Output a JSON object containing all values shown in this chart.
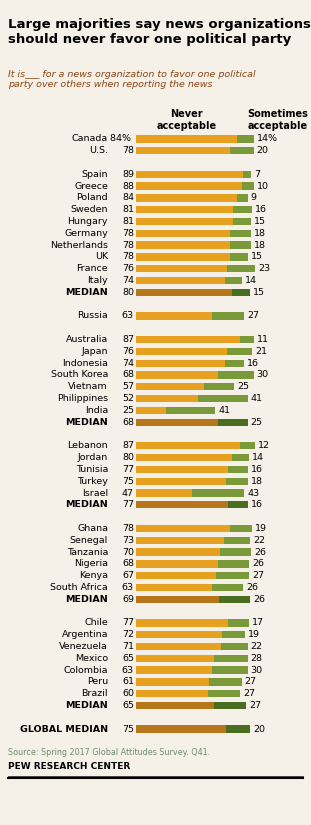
{
  "title": "Large majorities say news organizations\nshould never favor one political party",
  "subtitle": "It is___ for a news organization to favor one political\nparty over others when reporting the news",
  "legend_never": "Never\nacceptable",
  "legend_sometimes": "Sometimes\nacceptable",
  "source": "Source: Spring 2017 Global Attitudes Survey. Q41.",
  "credit": "PEW RESEARCH CENTER",
  "color_never": "#E8A020",
  "color_never_median": "#B8761A",
  "color_sometimes": "#7A9A3A",
  "color_sometimes_median": "#4A6E20",
  "bg_color": "#F5F0E8",
  "categories": [
    {
      "label": "Canada",
      "never": 84,
      "sometimes": 14,
      "never_pct": true,
      "sometimes_pct": true,
      "is_median": false,
      "group": 0
    },
    {
      "label": "U.S.",
      "never": 78,
      "sometimes": 20,
      "never_pct": false,
      "sometimes_pct": false,
      "is_median": false,
      "group": 0
    },
    {
      "label": "",
      "never": 0,
      "sometimes": 0,
      "never_pct": false,
      "sometimes_pct": false,
      "is_median": false,
      "group": -1
    },
    {
      "label": "Spain",
      "never": 89,
      "sometimes": 7,
      "never_pct": false,
      "sometimes_pct": false,
      "is_median": false,
      "group": 1
    },
    {
      "label": "Greece",
      "never": 88,
      "sometimes": 10,
      "never_pct": false,
      "sometimes_pct": false,
      "is_median": false,
      "group": 1
    },
    {
      "label": "Poland",
      "never": 84,
      "sometimes": 9,
      "never_pct": false,
      "sometimes_pct": false,
      "is_median": false,
      "group": 1
    },
    {
      "label": "Sweden",
      "never": 81,
      "sometimes": 16,
      "never_pct": false,
      "sometimes_pct": false,
      "is_median": false,
      "group": 1
    },
    {
      "label": "Hungary",
      "never": 81,
      "sometimes": 15,
      "never_pct": false,
      "sometimes_pct": false,
      "is_median": false,
      "group": 1
    },
    {
      "label": "Germany",
      "never": 78,
      "sometimes": 18,
      "never_pct": false,
      "sometimes_pct": false,
      "is_median": false,
      "group": 1
    },
    {
      "label": "Netherlands",
      "never": 78,
      "sometimes": 18,
      "never_pct": false,
      "sometimes_pct": false,
      "is_median": false,
      "group": 1
    },
    {
      "label": "UK",
      "never": 78,
      "sometimes": 15,
      "never_pct": false,
      "sometimes_pct": false,
      "is_median": false,
      "group": 1
    },
    {
      "label": "France",
      "never": 76,
      "sometimes": 23,
      "never_pct": false,
      "sometimes_pct": false,
      "is_median": false,
      "group": 1
    },
    {
      "label": "Italy",
      "never": 74,
      "sometimes": 14,
      "never_pct": false,
      "sometimes_pct": false,
      "is_median": false,
      "group": 1
    },
    {
      "label": "MEDIAN",
      "never": 80,
      "sometimes": 15,
      "never_pct": false,
      "sometimes_pct": false,
      "is_median": true,
      "group": 1
    },
    {
      "label": "",
      "never": 0,
      "sometimes": 0,
      "never_pct": false,
      "sometimes_pct": false,
      "is_median": false,
      "group": -1
    },
    {
      "label": "Russia",
      "never": 63,
      "sometimes": 27,
      "never_pct": false,
      "sometimes_pct": false,
      "is_median": false,
      "group": 2
    },
    {
      "label": "",
      "never": 0,
      "sometimes": 0,
      "never_pct": false,
      "sometimes_pct": false,
      "is_median": false,
      "group": -1
    },
    {
      "label": "Australia",
      "never": 87,
      "sometimes": 11,
      "never_pct": false,
      "sometimes_pct": false,
      "is_median": false,
      "group": 3
    },
    {
      "label": "Japan",
      "never": 76,
      "sometimes": 21,
      "never_pct": false,
      "sometimes_pct": false,
      "is_median": false,
      "group": 3
    },
    {
      "label": "Indonesia",
      "never": 74,
      "sometimes": 16,
      "never_pct": false,
      "sometimes_pct": false,
      "is_median": false,
      "group": 3
    },
    {
      "label": "South Korea",
      "never": 68,
      "sometimes": 30,
      "never_pct": false,
      "sometimes_pct": false,
      "is_median": false,
      "group": 3
    },
    {
      "label": "Vietnam",
      "never": 57,
      "sometimes": 25,
      "never_pct": false,
      "sometimes_pct": false,
      "is_median": false,
      "group": 3
    },
    {
      "label": "Philippines",
      "never": 52,
      "sometimes": 41,
      "never_pct": false,
      "sometimes_pct": false,
      "is_median": false,
      "group": 3
    },
    {
      "label": "India",
      "never": 25,
      "sometimes": 41,
      "never_pct": false,
      "sometimes_pct": false,
      "is_median": false,
      "group": 3
    },
    {
      "label": "MEDIAN",
      "never": 68,
      "sometimes": 25,
      "never_pct": false,
      "sometimes_pct": false,
      "is_median": true,
      "group": 3
    },
    {
      "label": "",
      "never": 0,
      "sometimes": 0,
      "never_pct": false,
      "sometimes_pct": false,
      "is_median": false,
      "group": -1
    },
    {
      "label": "Lebanon",
      "never": 87,
      "sometimes": 12,
      "never_pct": false,
      "sometimes_pct": false,
      "is_median": false,
      "group": 4
    },
    {
      "label": "Jordan",
      "never": 80,
      "sometimes": 14,
      "never_pct": false,
      "sometimes_pct": false,
      "is_median": false,
      "group": 4
    },
    {
      "label": "Tunisia",
      "never": 77,
      "sometimes": 16,
      "never_pct": false,
      "sometimes_pct": false,
      "is_median": false,
      "group": 4
    },
    {
      "label": "Turkey",
      "never": 75,
      "sometimes": 18,
      "never_pct": false,
      "sometimes_pct": false,
      "is_median": false,
      "group": 4
    },
    {
      "label": "Israel",
      "never": 47,
      "sometimes": 43,
      "never_pct": false,
      "sometimes_pct": false,
      "is_median": false,
      "group": 4
    },
    {
      "label": "MEDIAN",
      "never": 77,
      "sometimes": 16,
      "never_pct": false,
      "sometimes_pct": false,
      "is_median": true,
      "group": 4
    },
    {
      "label": "",
      "never": 0,
      "sometimes": 0,
      "never_pct": false,
      "sometimes_pct": false,
      "is_median": false,
      "group": -1
    },
    {
      "label": "Ghana",
      "never": 78,
      "sometimes": 19,
      "never_pct": false,
      "sometimes_pct": false,
      "is_median": false,
      "group": 5
    },
    {
      "label": "Senegal",
      "never": 73,
      "sometimes": 22,
      "never_pct": false,
      "sometimes_pct": false,
      "is_median": false,
      "group": 5
    },
    {
      "label": "Tanzania",
      "never": 70,
      "sometimes": 26,
      "never_pct": false,
      "sometimes_pct": false,
      "is_median": false,
      "group": 5
    },
    {
      "label": "Nigeria",
      "never": 68,
      "sometimes": 26,
      "never_pct": false,
      "sometimes_pct": false,
      "is_median": false,
      "group": 5
    },
    {
      "label": "Kenya",
      "never": 67,
      "sometimes": 27,
      "never_pct": false,
      "sometimes_pct": false,
      "is_median": false,
      "group": 5
    },
    {
      "label": "South Africa",
      "never": 63,
      "sometimes": 26,
      "never_pct": false,
      "sometimes_pct": false,
      "is_median": false,
      "group": 5
    },
    {
      "label": "MEDIAN",
      "never": 69,
      "sometimes": 26,
      "never_pct": false,
      "sometimes_pct": false,
      "is_median": true,
      "group": 5
    },
    {
      "label": "",
      "never": 0,
      "sometimes": 0,
      "never_pct": false,
      "sometimes_pct": false,
      "is_median": false,
      "group": -1
    },
    {
      "label": "Chile",
      "never": 77,
      "sometimes": 17,
      "never_pct": false,
      "sometimes_pct": false,
      "is_median": false,
      "group": 6
    },
    {
      "label": "Argentina",
      "never": 72,
      "sometimes": 19,
      "never_pct": false,
      "sometimes_pct": false,
      "is_median": false,
      "group": 6
    },
    {
      "label": "Venezuela",
      "never": 71,
      "sometimes": 22,
      "never_pct": false,
      "sometimes_pct": false,
      "is_median": false,
      "group": 6
    },
    {
      "label": "Mexico",
      "never": 65,
      "sometimes": 28,
      "never_pct": false,
      "sometimes_pct": false,
      "is_median": false,
      "group": 6
    },
    {
      "label": "Colombia",
      "never": 63,
      "sometimes": 30,
      "never_pct": false,
      "sometimes_pct": false,
      "is_median": false,
      "group": 6
    },
    {
      "label": "Peru",
      "never": 61,
      "sometimes": 27,
      "never_pct": false,
      "sometimes_pct": false,
      "is_median": false,
      "group": 6
    },
    {
      "label": "Brazil",
      "never": 60,
      "sometimes": 27,
      "never_pct": false,
      "sometimes_pct": false,
      "is_median": false,
      "group": 6
    },
    {
      "label": "MEDIAN",
      "never": 65,
      "sometimes": 27,
      "never_pct": false,
      "sometimes_pct": false,
      "is_median": true,
      "group": 6
    },
    {
      "label": "",
      "never": 0,
      "sometimes": 0,
      "never_pct": false,
      "sometimes_pct": false,
      "is_median": false,
      "group": -1
    },
    {
      "label": "GLOBAL MEDIAN",
      "never": 75,
      "sometimes": 20,
      "never_pct": false,
      "sometimes_pct": false,
      "is_median": true,
      "group": 7
    }
  ]
}
